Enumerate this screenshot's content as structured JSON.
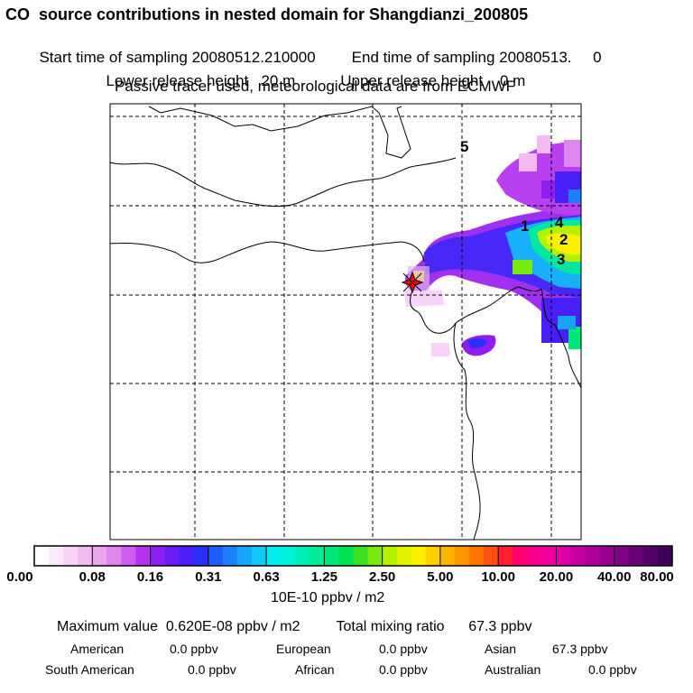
{
  "header": {
    "title": "CO  source contributions in nested domain for Shangdianzi_200805",
    "start_label": "Start time of sampling 20080512.210000",
    "end_label": "End time of sampling 20080513.     0",
    "lower_release": "Lower release height   20 m",
    "upper_release": "Upper release height    0 m",
    "tracer_note": "Passive tracer used, meteorological data are from ECMWF"
  },
  "map": {
    "labels": [
      {
        "text": "5"
      },
      {
        "text": "1"
      },
      {
        "text": "4"
      },
      {
        "text": "2"
      },
      {
        "text": "3"
      }
    ],
    "marker_icon": "star-marker-icon",
    "marker_color": "#ff0000"
  },
  "colorbar": {
    "ticks": [
      "0.00",
      "0.08",
      "0.16",
      "0.31",
      "0.63",
      "1.25",
      "2.50",
      "5.00",
      "10.00",
      "20.00",
      "40.00",
      "80.00"
    ],
    "colors": [
      "#ffffff",
      "#fbe9fb",
      "#f7d3f7",
      "#f2bcf2",
      "#eaa6ea",
      "#de85ee",
      "#cf5cf0",
      "#b830f0",
      "#8f1ef2",
      "#6a1ef5",
      "#4820f7",
      "#2a30f9",
      "#1c5cfb",
      "#1b80fb",
      "#18a4fb",
      "#12c9f9",
      "#00eef0",
      "#00f2d8",
      "#00efb8",
      "#00ec98",
      "#00e878",
      "#00e050",
      "#3cdf24",
      "#78ea10",
      "#b5f000",
      "#e0f400",
      "#fbf000",
      "#ffd000",
      "#ffb400",
      "#ff9600",
      "#ff7400",
      "#ff5014",
      "#ff2030",
      "#ff0070",
      "#f8008e",
      "#ee00a0",
      "#dc00a8",
      "#c800a4",
      "#b0009c",
      "#980092",
      "#800086",
      "#6a0078",
      "#54006a",
      "#3e005a"
    ],
    "unit": "10E-10 ppbv / m2"
  },
  "summary": {
    "max_label": "Maximum value  0.620E-08 ppbv / m2",
    "total_label": "Total mixing ratio      67.3 ppbv",
    "regions": [
      {
        "name": "American",
        "value": "0.0 ppbv"
      },
      {
        "name": "European",
        "value": "0.0 ppbv"
      },
      {
        "name": "Asian",
        "value": "67.3 ppbv"
      },
      {
        "name": "South American",
        "value": "0.0 ppbv"
      },
      {
        "name": "African",
        "value": "0.0 ppbv"
      },
      {
        "name": "Australian",
        "value": "0.0 ppbv"
      }
    ]
  }
}
